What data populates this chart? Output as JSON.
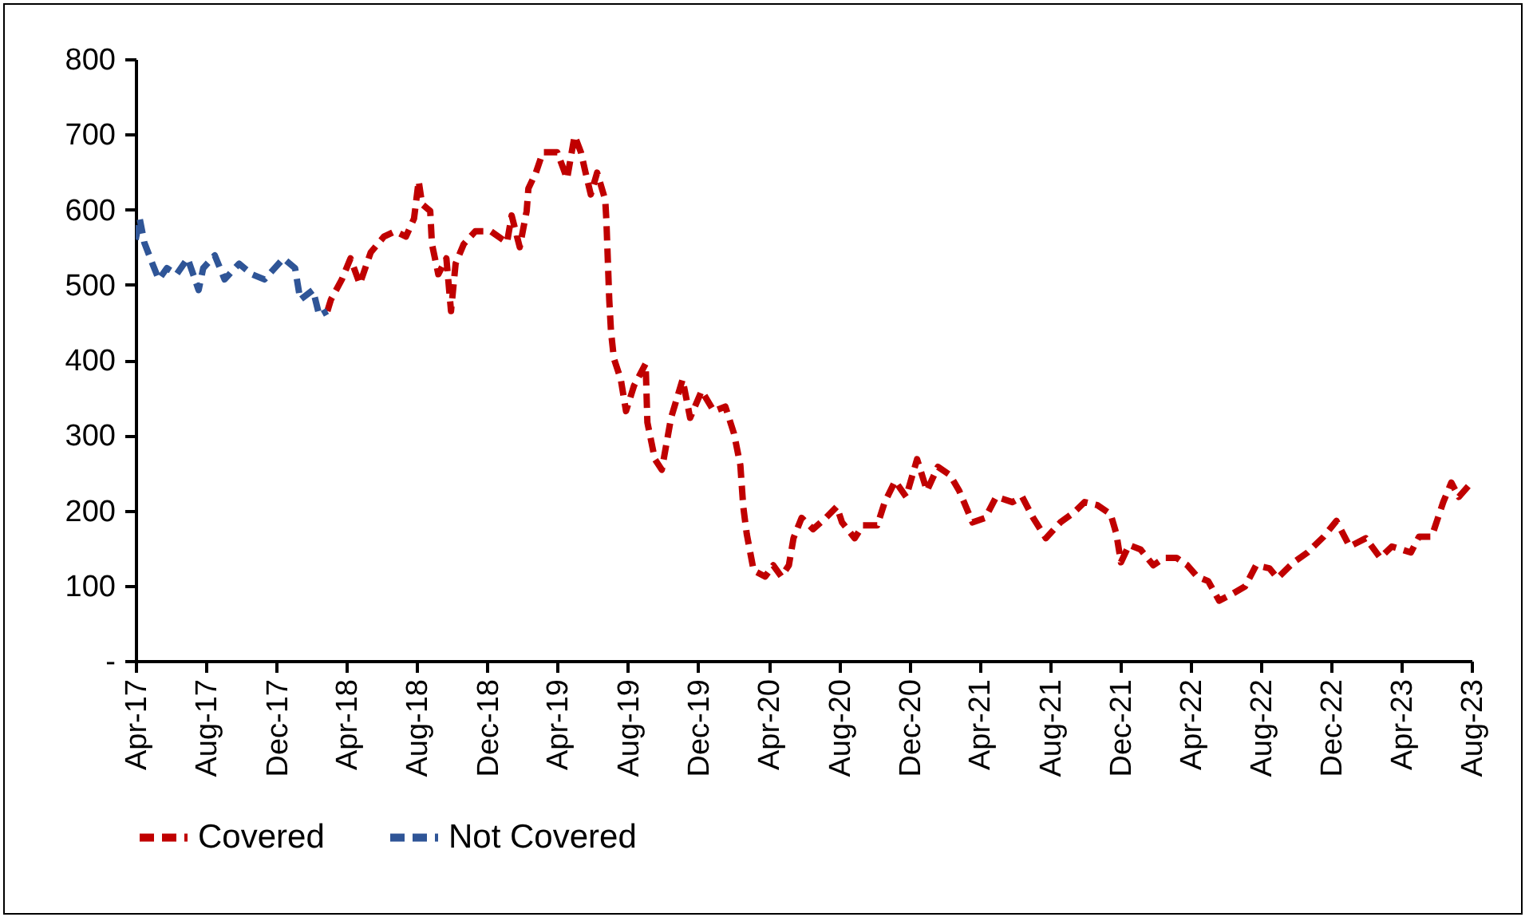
{
  "chart_data": {
    "type": "line",
    "xlim": [
      "2017-04-01",
      "2023-08-01"
    ],
    "xticks": [
      {
        "value": "2017-04-01",
        "label": "Apr-17"
      },
      {
        "value": "2017-08-01",
        "label": "Aug-17"
      },
      {
        "value": "2017-12-01",
        "label": "Dec-17"
      },
      {
        "value": "2018-04-01",
        "label": "Apr-18"
      },
      {
        "value": "2018-08-01",
        "label": "Aug-18"
      },
      {
        "value": "2018-12-01",
        "label": "Dec-18"
      },
      {
        "value": "2019-04-01",
        "label": "Apr-19"
      },
      {
        "value": "2019-08-01",
        "label": "Aug-19"
      },
      {
        "value": "2019-12-01",
        "label": "Dec-19"
      },
      {
        "value": "2020-04-01",
        "label": "Apr-20"
      },
      {
        "value": "2020-08-01",
        "label": "Aug-20"
      },
      {
        "value": "2020-12-01",
        "label": "Dec-20"
      },
      {
        "value": "2021-04-01",
        "label": "Apr-21"
      },
      {
        "value": "2021-08-01",
        "label": "Aug-21"
      },
      {
        "value": "2021-12-01",
        "label": "Dec-21"
      },
      {
        "value": "2022-04-01",
        "label": "Apr-22"
      },
      {
        "value": "2022-08-01",
        "label": "Aug-22"
      },
      {
        "value": "2022-12-01",
        "label": "Dec-22"
      },
      {
        "value": "2023-04-01",
        "label": "Apr-23"
      },
      {
        "value": "2023-08-01",
        "label": "Aug-23"
      }
    ],
    "ylim": [
      0,
      800
    ],
    "yticks": [
      {
        "value": 0,
        "label": "-"
      },
      100,
      200,
      300,
      400,
      500,
      600,
      700,
      800
    ],
    "grid": false,
    "legend": "bottom",
    "line_style": "dashed",
    "series": [
      {
        "name": "Covered",
        "color": "#c00000",
        "x": [
          "2018-02-27",
          "2018-03-05",
          "2018-03-24",
          "2018-04-08",
          "2018-04-24",
          "2018-05-13",
          "2018-06-05",
          "2018-06-24",
          "2018-07-13",
          "2018-07-27",
          "2018-08-04",
          "2018-08-10",
          "2018-08-24",
          "2018-08-27",
          "2018-09-07",
          "2018-09-21",
          "2018-09-29",
          "2018-10-07",
          "2018-10-21",
          "2018-11-10",
          "2018-12-07",
          "2019-01-04",
          "2019-01-12",
          "2019-01-26",
          "2019-02-07",
          "2019-02-10",
          "2019-02-23",
          "2019-03-07",
          "2019-04-01",
          "2019-04-18",
          "2019-05-01",
          "2019-05-12",
          "2019-05-20",
          "2019-05-29",
          "2019-06-09",
          "2019-06-23",
          "2019-06-25",
          "2019-06-30",
          "2019-07-03",
          "2019-07-08",
          "2019-07-20",
          "2019-07-29",
          "2019-08-12",
          "2019-09-01",
          "2019-09-04",
          "2019-09-17",
          "2019-09-29",
          "2019-10-15",
          "2019-11-04",
          "2019-11-17",
          "2019-12-07",
          "2019-12-28",
          "2020-01-17",
          "2020-02-01",
          "2020-02-12",
          "2020-02-17",
          "2020-02-23",
          "2020-03-06",
          "2020-03-26",
          "2020-04-09",
          "2020-04-23",
          "2020-05-06",
          "2020-05-14",
          "2020-05-28",
          "2020-06-17",
          "2020-07-09",
          "2020-07-28",
          "2020-08-06",
          "2020-08-28",
          "2020-09-11",
          "2020-10-06",
          "2020-10-19",
          "2020-11-06",
          "2020-11-25",
          "2020-12-14",
          "2020-12-31",
          "2021-01-19",
          "2021-02-09",
          "2021-02-25",
          "2021-03-20",
          "2021-04-11",
          "2021-04-30",
          "2021-05-28",
          "2021-06-14",
          "2021-07-03",
          "2021-07-25",
          "2021-08-19",
          "2021-09-11",
          "2021-09-30",
          "2021-10-22",
          "2021-11-14",
          "2021-11-24",
          "2021-12-02",
          "2021-12-16",
          "2022-01-05",
          "2022-01-27",
          "2022-02-15",
          "2022-03-08",
          "2022-03-27",
          "2022-04-13",
          "2022-05-02",
          "2022-05-21",
          "2022-06-13",
          "2022-07-05",
          "2022-07-24",
          "2022-08-16",
          "2022-08-30",
          "2022-09-27",
          "2022-10-21",
          "2022-11-18",
          "2022-12-10",
          "2023-01-02",
          "2023-01-30",
          "2023-02-24",
          "2023-03-16",
          "2023-04-18",
          "2023-05-02",
          "2023-05-24",
          "2023-06-13",
          "2023-06-27",
          "2023-07-10",
          "2023-08-01"
        ],
        "values": [
          465,
          480,
          507,
          535,
          501,
          543,
          564,
          571,
          564,
          588,
          638,
          607,
          598,
          554,
          514,
          535,
          465,
          528,
          554,
          571,
          571,
          556,
          592,
          550,
          598,
          628,
          649,
          676,
          676,
          641,
          698,
          676,
          649,
          620,
          649,
          613,
          586,
          480,
          438,
          402,
          374,
          332,
          366,
          395,
          317,
          268,
          254,
          323,
          374,
          323,
          359,
          332,
          338,
          302,
          260,
          205,
          169,
          120,
          112,
          127,
          112,
          127,
          163,
          190,
          175,
          190,
          205,
          184,
          163,
          180,
          180,
          211,
          239,
          218,
          268,
          226,
          258,
          247,
          226,
          184,
          190,
          218,
          211,
          218,
          190,
          163,
          184,
          197,
          211,
          207,
          195,
          169,
          131,
          154,
          148,
          127,
          137,
          137,
          127,
          112,
          106,
          80,
          89,
          99,
          127,
          123,
          110,
          131,
          144,
          165,
          186,
          152,
          163,
          137,
          152,
          144,
          165,
          165,
          211,
          237,
          218,
          237
        ]
      },
      {
        "name": "Not Covered",
        "color": "#2f5597",
        "x": [
          "2017-04-01",
          "2017-04-08",
          "2017-04-16",
          "2017-04-30",
          "2017-05-11",
          "2017-05-25",
          "2017-06-11",
          "2017-06-30",
          "2017-07-19",
          "2017-07-27",
          "2017-08-16",
          "2017-09-02",
          "2017-09-27",
          "2017-10-19",
          "2017-11-10",
          "2017-12-13",
          "2018-01-02",
          "2018-01-11",
          "2018-02-02",
          "2018-02-13",
          "2018-02-27"
        ],
        "values": [
          560,
          588,
          556,
          528,
          507,
          522,
          514,
          535,
          493,
          522,
          539,
          507,
          528,
          514,
          507,
          535,
          522,
          480,
          493,
          459,
          465
        ]
      }
    ]
  }
}
